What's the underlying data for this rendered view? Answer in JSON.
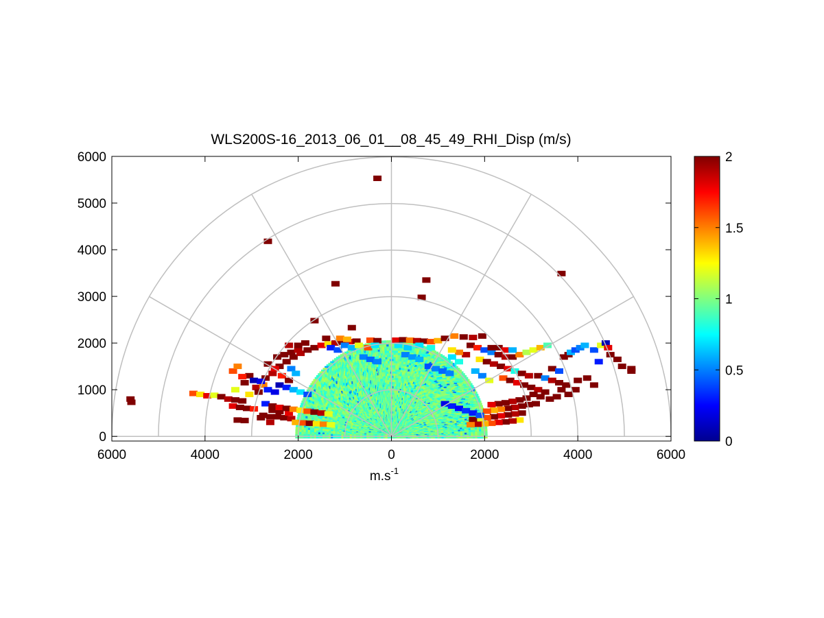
{
  "chart_data": {
    "type": "heatmap",
    "subtype": "polar-rhi",
    "title": "WLS200S-16_2013_06_01__08_45_49_RHI_Disp (m/s)",
    "xlabel_base": "m.s",
    "xlabel_sup": "-1",
    "ylabel": "",
    "xlim": [
      -6000,
      6000
    ],
    "ylim": [
      -100,
      6000
    ],
    "x_ticks": [
      -6000,
      -4000,
      -2000,
      0,
      2000,
      4000,
      6000
    ],
    "x_tick_labels": [
      "6000",
      "4000",
      "2000",
      "0",
      "2000",
      "4000",
      "6000"
    ],
    "y_ticks": [
      0,
      1000,
      2000,
      3000,
      4000,
      5000,
      6000
    ],
    "y_tick_labels": [
      "0",
      "1000",
      "2000",
      "3000",
      "4000",
      "5000",
      "6000"
    ],
    "polar_grid": {
      "rings": [
        1000,
        2000,
        3000,
        4000,
        5000,
        6000
      ],
      "spokes_deg": [
        0,
        30,
        60,
        90,
        120,
        150,
        180
      ],
      "color": "#bfbfbf"
    },
    "colorbar": {
      "colormap": "jet",
      "range": [
        0,
        2
      ],
      "ticks": [
        0,
        0.5,
        1,
        1.5,
        2
      ],
      "tick_labels": [
        "0",
        "0.5",
        "1",
        "1.5",
        "2"
      ]
    },
    "core_region": {
      "r_min": 40,
      "r_max": 2050,
      "typical_value": 0.95,
      "spread": 0.15
    },
    "points": [
      [
        -300,
        5530,
        2
      ],
      [
        -2650,
        4180,
        2
      ],
      [
        -1200,
        3270,
        2
      ],
      [
        750,
        3350,
        2
      ],
      [
        650,
        2980,
        2
      ],
      [
        3650,
        3490,
        2
      ],
      [
        -1650,
        2480,
        2
      ],
      [
        -850,
        2330,
        2
      ],
      [
        -5600,
        800,
        2
      ],
      [
        -5580,
        730,
        2
      ],
      [
        -4250,
        920,
        1.6
      ],
      [
        -4100,
        900,
        1.3
      ],
      [
        -3950,
        870,
        1.8
      ],
      [
        -3800,
        880,
        1.2
      ],
      [
        -3650,
        850,
        2
      ],
      [
        -3500,
        800,
        1.9
      ],
      [
        -3350,
        780,
        2
      ],
      [
        -3200,
        760,
        2
      ],
      [
        -3400,
        650,
        1.8
      ],
      [
        -3250,
        620,
        2
      ],
      [
        -3100,
        600,
        2
      ],
      [
        -2950,
        590,
        1.7
      ],
      [
        -3300,
        350,
        2
      ],
      [
        -3150,
        340,
        2
      ],
      [
        -2600,
        300,
        1.9
      ],
      [
        -2800,
        400,
        2
      ],
      [
        -2750,
        450,
        2
      ],
      [
        -2600,
        420,
        2
      ],
      [
        -2450,
        420,
        2
      ],
      [
        -2300,
        400,
        2
      ],
      [
        -2150,
        380,
        1.9
      ],
      [
        -2550,
        560,
        2
      ],
      [
        -2400,
        530,
        2
      ],
      [
        -2200,
        500,
        1.8
      ],
      [
        -3050,
        1300,
        2
      ],
      [
        -3200,
        1280,
        1.7
      ],
      [
        -3150,
        1150,
        2
      ],
      [
        -3350,
        1000,
        1.2
      ],
      [
        -2900,
        1050,
        1.9
      ],
      [
        -2750,
        1100,
        1.5
      ],
      [
        -2650,
        1000,
        0.3
      ],
      [
        -2500,
        950,
        0.2
      ],
      [
        -3050,
        900,
        1.3
      ],
      [
        -2850,
        950,
        2
      ],
      [
        -2700,
        1250,
        2
      ],
      [
        -2550,
        1350,
        1.9
      ],
      [
        -2400,
        1500,
        2
      ],
      [
        -2250,
        1600,
        2
      ],
      [
        -2100,
        1700,
        2
      ],
      [
        -1950,
        1780,
        1.9
      ],
      [
        -1800,
        1850,
        2
      ],
      [
        -1650,
        1900,
        2
      ],
      [
        -1500,
        1950,
        1.8
      ],
      [
        -1350,
        1980,
        1.3
      ],
      [
        -1200,
        2000,
        1.9
      ],
      [
        -1050,
        2020,
        2
      ],
      [
        -900,
        2030,
        1.8
      ],
      [
        -750,
        2040,
        2
      ],
      [
        -2450,
        1700,
        2
      ],
      [
        -2300,
        1750,
        2
      ],
      [
        -2150,
        1800,
        2
      ],
      [
        -2000,
        1850,
        1.9
      ],
      [
        -2650,
        1550,
        2
      ],
      [
        -2500,
        1450,
        1.8
      ],
      [
        -2350,
        1300,
        1.7
      ],
      [
        -2200,
        1200,
        2
      ],
      [
        -2150,
        1450,
        0.5
      ],
      [
        -2050,
        1350,
        0.6
      ],
      [
        -3400,
        1400,
        1.6
      ],
      [
        -3300,
        1500,
        1.5
      ],
      [
        -2000,
        1950,
        2
      ],
      [
        -1850,
        2000,
        2
      ],
      [
        -2200,
        1950,
        1.9
      ],
      [
        -1400,
        2100,
        2
      ],
      [
        -1100,
        2100,
        1.5
      ],
      [
        -950,
        2080,
        1.4
      ],
      [
        -450,
        2060,
        1.6
      ],
      [
        -300,
        2050,
        2
      ],
      [
        100,
        2060,
        1.8
      ],
      [
        250,
        2070,
        2
      ],
      [
        400,
        2060,
        1.5
      ],
      [
        550,
        2050,
        1.9
      ],
      [
        700,
        2040,
        2
      ],
      [
        850,
        2030,
        1.6
      ],
      [
        1000,
        2050,
        1.4
      ],
      [
        1150,
        2100,
        2
      ],
      [
        1350,
        2150,
        1.5
      ],
      [
        1550,
        2130,
        2
      ],
      [
        1750,
        2120,
        1.9
      ],
      [
        1950,
        2150,
        2
      ],
      [
        1700,
        1950,
        2
      ],
      [
        1850,
        1900,
        1.7
      ],
      [
        2000,
        1850,
        0.4
      ],
      [
        2150,
        1800,
        0.5
      ],
      [
        2300,
        1750,
        2
      ],
      [
        2450,
        1700,
        1.9
      ],
      [
        2600,
        1700,
        2
      ],
      [
        2750,
        1750,
        1.5
      ],
      [
        2900,
        1800,
        1.1
      ],
      [
        3050,
        1850,
        1.2
      ],
      [
        3200,
        1900,
        1.4
      ],
      [
        3350,
        1950,
        0.9
      ],
      [
        2150,
        1900,
        2
      ],
      [
        2300,
        1900,
        2
      ],
      [
        2450,
        1850,
        1.8
      ],
      [
        2600,
        1850,
        0.6
      ],
      [
        1900,
        1650,
        1.3
      ],
      [
        2050,
        1600,
        2
      ],
      [
        2200,
        1550,
        1.9
      ],
      [
        2350,
        1500,
        2
      ],
      [
        2500,
        1450,
        1.8
      ],
      [
        2650,
        1400,
        0.8
      ],
      [
        2800,
        1350,
        2
      ],
      [
        2950,
        1300,
        1.9
      ],
      [
        3150,
        1300,
        2
      ],
      [
        3300,
        1250,
        0.5
      ],
      [
        3450,
        1200,
        1.9
      ],
      [
        3600,
        1150,
        2
      ],
      [
        3750,
        1100,
        2
      ],
      [
        2400,
        1250,
        1.6
      ],
      [
        2550,
        1200,
        2
      ],
      [
        2700,
        1150,
        1.8
      ],
      [
        2850,
        1100,
        2
      ],
      [
        3000,
        1050,
        2
      ],
      [
        3150,
        1000,
        1.9
      ],
      [
        3300,
        950,
        2
      ],
      [
        3050,
        900,
        2
      ],
      [
        3200,
        850,
        2
      ],
      [
        2900,
        820,
        2
      ],
      [
        2750,
        780,
        2
      ],
      [
        2600,
        750,
        1.9
      ],
      [
        2450,
        720,
        2
      ],
      [
        2300,
        700,
        2
      ],
      [
        2150,
        680,
        1.8
      ],
      [
        3100,
        700,
        2
      ],
      [
        2950,
        680,
        2
      ],
      [
        2800,
        650,
        2
      ],
      [
        2650,
        620,
        1.9
      ],
      [
        2500,
        600,
        2
      ],
      [
        2350,
        580,
        1.5
      ],
      [
        2200,
        560,
        1.4
      ],
      [
        2050,
        540,
        1.6
      ],
      [
        2800,
        500,
        2
      ],
      [
        2650,
        480,
        1.9
      ],
      [
        2500,
        460,
        2
      ],
      [
        2350,
        440,
        1.8
      ],
      [
        2200,
        420,
        2
      ],
      [
        2050,
        400,
        1.6
      ],
      [
        1900,
        380,
        1.2
      ],
      [
        1750,
        360,
        2
      ],
      [
        2750,
        350,
        1.3
      ],
      [
        2600,
        330,
        1.9
      ],
      [
        2450,
        310,
        2
      ],
      [
        2300,
        300,
        1.8
      ],
      [
        2150,
        280,
        1.6
      ],
      [
        2000,
        270,
        1.4
      ],
      [
        1850,
        260,
        1.9
      ],
      [
        1700,
        250,
        1.5
      ],
      [
        1600,
        1750,
        1.9
      ],
      [
        1450,
        1800,
        1.5
      ],
      [
        1300,
        1850,
        1.3
      ],
      [
        1450,
        1600,
        0.8
      ],
      [
        1300,
        1700,
        0.7
      ],
      [
        1800,
        1400,
        0.6
      ],
      [
        1950,
        1300,
        0.5
      ],
      [
        2100,
        1200,
        1.2
      ],
      [
        3450,
        1450,
        2
      ],
      [
        3600,
        1400,
        0.4
      ],
      [
        3800,
        1750,
        2
      ],
      [
        3700,
        1700,
        2
      ],
      [
        3850,
        1800,
        0.6
      ],
      [
        3950,
        1850,
        0.4
      ],
      [
        4050,
        1900,
        0.5
      ],
      [
        4150,
        1950,
        0.6
      ],
      [
        4350,
        1850,
        0.4
      ],
      [
        4500,
        1950,
        1.2
      ],
      [
        4600,
        2000,
        0.1
      ],
      [
        4650,
        1900,
        1.8
      ],
      [
        4700,
        1750,
        2
      ],
      [
        4450,
        1600,
        0.3
      ],
      [
        4850,
        1650,
        2
      ],
      [
        4950,
        1500,
        2
      ],
      [
        5150,
        1450,
        2
      ],
      [
        5150,
        1400,
        2
      ],
      [
        4000,
        1200,
        2
      ],
      [
        4200,
        1250,
        2
      ],
      [
        4350,
        1100,
        2
      ],
      [
        3950,
        1000,
        2
      ],
      [
        3800,
        900,
        2
      ],
      [
        3650,
        1000,
        2
      ],
      [
        3550,
        850,
        2
      ],
      [
        3400,
        800,
        2
      ],
      [
        -1300,
        1900,
        0.3
      ],
      [
        -1150,
        1850,
        0.4
      ],
      [
        -1000,
        1950,
        0.5
      ],
      [
        -850,
        1900,
        0.6
      ],
      [
        -700,
        1950,
        1.2
      ],
      [
        -2950,
        1200,
        0.1
      ],
      [
        -2800,
        1180,
        0.2
      ],
      [
        -2400,
        1100,
        0.1
      ],
      [
        -2250,
        1050,
        0.3
      ],
      [
        -2100,
        1000,
        0.6
      ],
      [
        -1950,
        950,
        0.7
      ],
      [
        -1800,
        900,
        0.4
      ],
      [
        -2700,
        700,
        0.3
      ],
      [
        -2550,
        650,
        2
      ],
      [
        -2400,
        620,
        1.8
      ],
      [
        -2250,
        600,
        2
      ],
      [
        -2100,
        580,
        1.5
      ],
      [
        -1950,
        560,
        1.3
      ],
      [
        -1800,
        540,
        1.6
      ],
      [
        -1650,
        520,
        2
      ],
      [
        -1500,
        500,
        1.9
      ],
      [
        -1350,
        480,
        1.2
      ],
      [
        -2050,
        300,
        1.4
      ],
      [
        -1900,
        290,
        1.6
      ],
      [
        -1750,
        280,
        2
      ],
      [
        -1600,
        270,
        1.3
      ],
      [
        -1450,
        260,
        1.5
      ],
      [
        -1300,
        250,
        1.2
      ],
      [
        1150,
        700,
        0.2
      ],
      [
        1300,
        650,
        0.3
      ],
      [
        1450,
        600,
        0.25
      ],
      [
        1600,
        550,
        0.35
      ],
      [
        1750,
        500,
        0.3
      ],
      [
        1900,
        450,
        0.4
      ],
      [
        800,
        1500,
        0.4
      ],
      [
        950,
        1450,
        0.5
      ],
      [
        1100,
        1400,
        0.45
      ],
      [
        1250,
        1350,
        0.5
      ],
      [
        -600,
        1700,
        0.5
      ],
      [
        -450,
        1650,
        0.45
      ],
      [
        -300,
        1600,
        0.5
      ],
      [
        300,
        1750,
        0.5
      ],
      [
        450,
        1700,
        0.55
      ],
      [
        600,
        1650,
        0.6
      ],
      [
        -500,
        1900,
        1.6
      ],
      [
        -350,
        1950,
        0.7
      ],
      [
        150,
        1950,
        0.7
      ],
      [
        350,
        1900,
        0.65
      ],
      [
        600,
        1950,
        0.7
      ],
      [
        850,
        1900,
        0.8
      ]
    ]
  }
}
